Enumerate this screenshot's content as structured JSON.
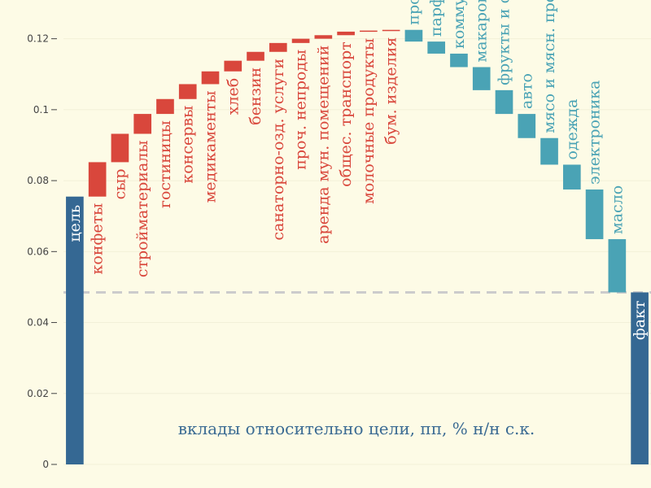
{
  "chart_data": {
    "type": "waterfall",
    "title": "",
    "xlabel": "",
    "ylabel": "",
    "ylim": [
      0,
      0.1245
    ],
    "y_ticks": [
      0,
      0.02,
      0.04,
      0.06,
      0.08,
      0.1,
      0.12
    ],
    "y_tick_labels": [
      "0",
      "0.02",
      "0.04",
      "0.06",
      "0.08",
      "0.1",
      "0.12"
    ],
    "grid": true,
    "annotation": "вклады относительно цели, пп, % н/н с.к.",
    "reference_line": 0.0485,
    "colors": {
      "total": "#356893",
      "positive": "#d9473c",
      "negative": "#4aa3b5",
      "reference": "#cccccc",
      "grid": "#f2f0d8",
      "background": "#fdfbe6"
    },
    "bars": [
      {
        "label": "цель",
        "kind": "total",
        "start": 0,
        "end": 0.0755
      },
      {
        "label": "конфеты",
        "kind": "increase",
        "start": 0.0755,
        "end": 0.0852
      },
      {
        "label": "сыр",
        "kind": "increase",
        "start": 0.0852,
        "end": 0.0932
      },
      {
        "label": "стройматериалы",
        "kind": "increase",
        "start": 0.0932,
        "end": 0.0988
      },
      {
        "label": "гостиницы",
        "kind": "increase",
        "start": 0.0988,
        "end": 0.103
      },
      {
        "label": "консервы",
        "kind": "increase",
        "start": 0.103,
        "end": 0.1072
      },
      {
        "label": "медикаменты",
        "kind": "increase",
        "start": 0.1072,
        "end": 0.1108
      },
      {
        "label": "хлеб",
        "kind": "increase",
        "start": 0.1108,
        "end": 0.1138
      },
      {
        "label": "бензин",
        "kind": "increase",
        "start": 0.1138,
        "end": 0.1163
      },
      {
        "label": "санаторно-озд. услуги",
        "kind": "increase",
        "start": 0.1163,
        "end": 0.1188
      },
      {
        "label": "проч. непроды",
        "kind": "increase",
        "start": 0.1188,
        "end": 0.12
      },
      {
        "label": "аренда мун. помещений",
        "kind": "increase",
        "start": 0.12,
        "end": 0.121
      },
      {
        "label": "общес. транспорт",
        "kind": "increase",
        "start": 0.121,
        "end": 0.122
      },
      {
        "label": "молочные продукты",
        "kind": "increase",
        "start": 0.122,
        "end": 0.1223
      },
      {
        "label": "бум. изделия",
        "kind": "increase",
        "start": 0.1223,
        "end": 0.1225
      },
      {
        "label": "проч. проды",
        "kind": "decrease",
        "start": 0.1225,
        "end": 0.1192
      },
      {
        "label": "парфюмерия и косм.",
        "kind": "decrease",
        "start": 0.1192,
        "end": 0.1158
      },
      {
        "label": "коммунальные услуги",
        "kind": "decrease",
        "start": 0.1158,
        "end": 0.112
      },
      {
        "label": "макароны и крупы",
        "kind": "decrease",
        "start": 0.112,
        "end": 0.1055
      },
      {
        "label": "фрукты и овощи",
        "kind": "decrease",
        "start": 0.1055,
        "end": 0.0988
      },
      {
        "label": "авто",
        "kind": "decrease",
        "start": 0.0988,
        "end": 0.092
      },
      {
        "label": "мясо и мясн. продукты",
        "kind": "decrease",
        "start": 0.092,
        "end": 0.0845
      },
      {
        "label": "одежда",
        "kind": "decrease",
        "start": 0.0845,
        "end": 0.0775
      },
      {
        "label": "электроника",
        "kind": "decrease",
        "start": 0.0775,
        "end": 0.0635
      },
      {
        "label": "масло",
        "kind": "decrease",
        "start": 0.0635,
        "end": 0.0485
      },
      {
        "label": "факт",
        "kind": "total",
        "start": 0,
        "end": 0.0485
      }
    ]
  }
}
